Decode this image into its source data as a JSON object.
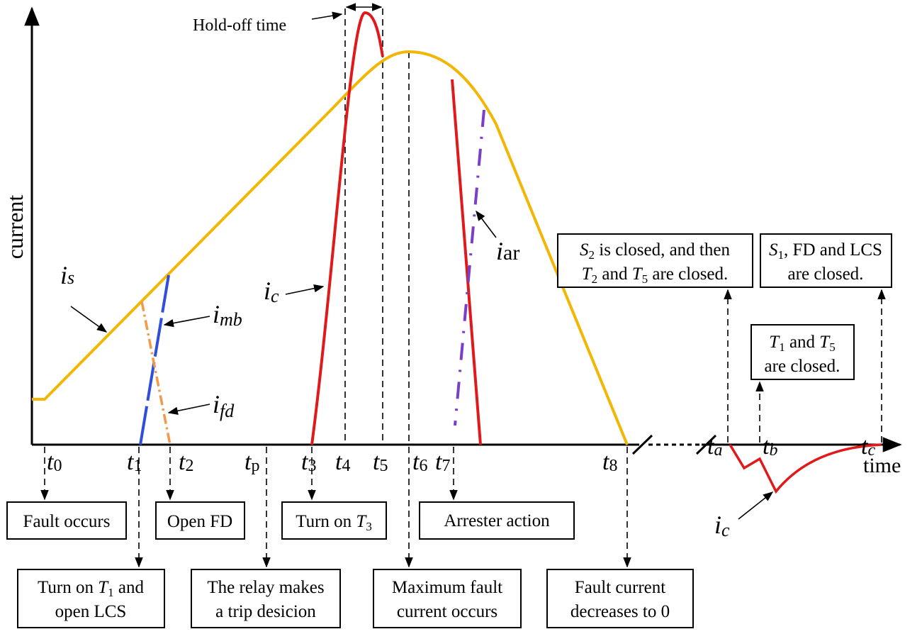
{
  "labels": {
    "y_axis": "current",
    "x_axis": "time",
    "hold_off": "Hold-off time"
  },
  "times": [
    {
      "symbol": "t",
      "sub": "0"
    },
    {
      "symbol": "t",
      "sub": "1"
    },
    {
      "symbol": "t",
      "sub": "2"
    },
    {
      "symbol": "t",
      "sub": "p"
    },
    {
      "symbol": "t",
      "sub": "3"
    },
    {
      "symbol": "t",
      "sub": "4"
    },
    {
      "symbol": "t",
      "sub": "5"
    },
    {
      "symbol": "t",
      "sub": "6"
    },
    {
      "symbol": "t",
      "sub": "7"
    },
    {
      "symbol": "t",
      "sub": "8"
    },
    {
      "symbol": "t",
      "sub": "a"
    },
    {
      "symbol": "t",
      "sub": "b"
    },
    {
      "symbol": "t",
      "sub": "c"
    }
  ],
  "currents": {
    "i_s": {
      "symbol": "i",
      "sub": "s"
    },
    "i_mb": {
      "symbol": "i",
      "sub": "mb"
    },
    "i_fd": {
      "symbol": "i",
      "sub": "fd"
    },
    "i_c": {
      "symbol": "i",
      "sub": "c"
    },
    "i_ar": {
      "symbol": "i",
      "sub": "ar"
    },
    "i_c_recovery": {
      "symbol": "i",
      "sub": "c"
    }
  },
  "events": {
    "fault": [
      "Fault occurs"
    ],
    "open_fd": [
      "Open FD"
    ],
    "turn_on_t3": [
      "Turn on ",
      "T",
      "3"
    ],
    "arrester": [
      "Arrester action"
    ],
    "turn_on_t1": [
      "Turn on ",
      "T",
      "1",
      " and",
      "open LCS"
    ],
    "relay": [
      "The relay makes",
      "a trip desicion"
    ],
    "max_fault": [
      "Maximum fault",
      "current occurs"
    ],
    "fault_zero": [
      "Fault current",
      "decreases to 0"
    ],
    "s2_closed": [
      "S",
      "2",
      " is closed, and then",
      "T",
      "2",
      " and ",
      "T",
      "5",
      " are closed."
    ],
    "s1_closed": [
      "S",
      "1",
      ", FD and LCS",
      "are closed."
    ],
    "t1_t5_closed": [
      "T",
      "1",
      " and ",
      "T",
      "5",
      "are closed."
    ]
  }
}
